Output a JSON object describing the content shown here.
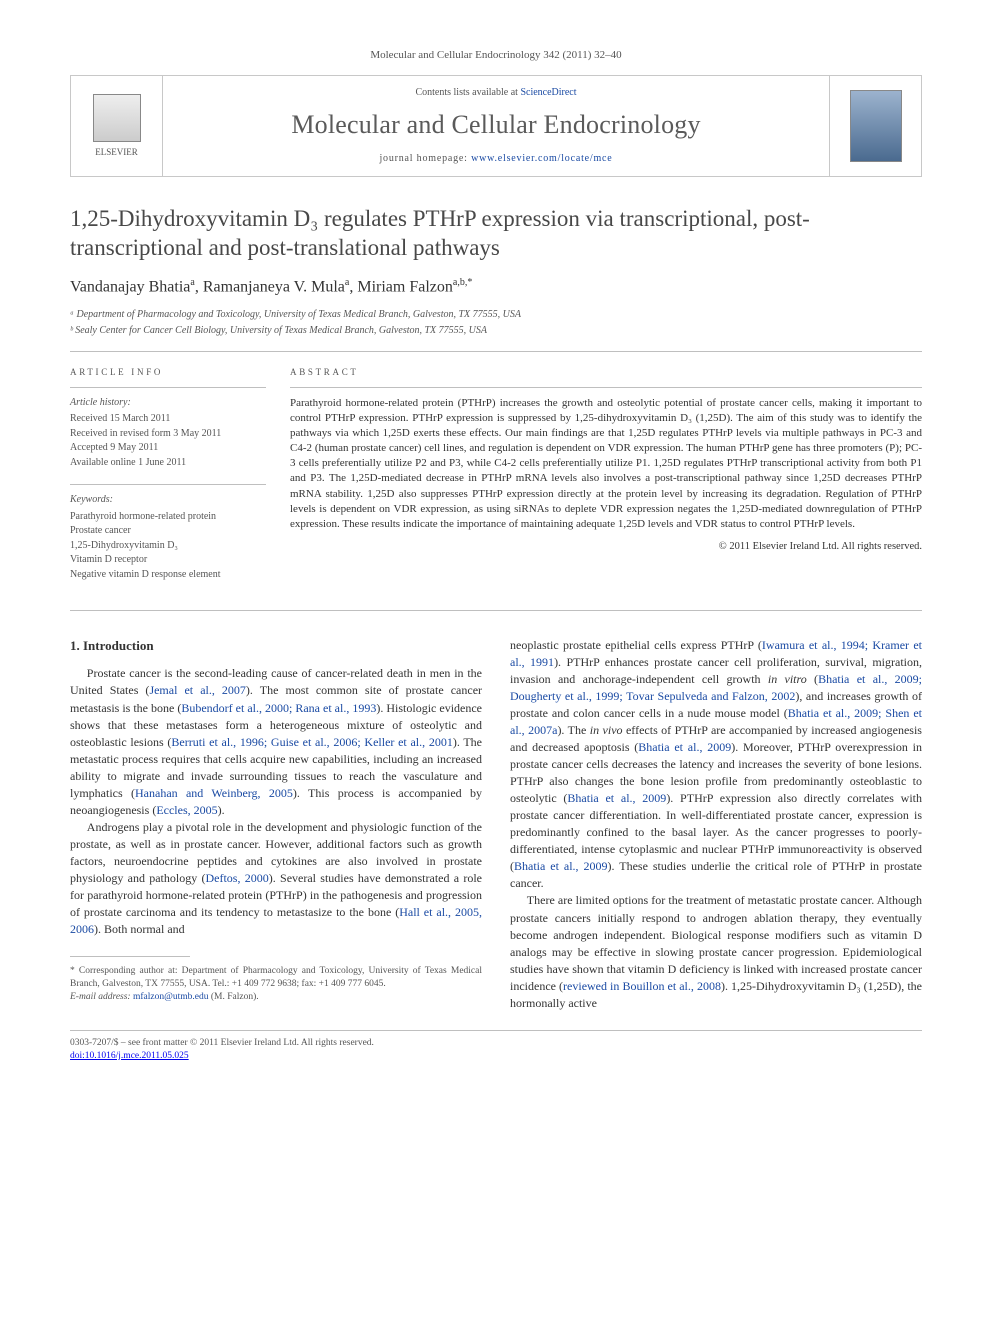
{
  "journal_ref": "Molecular and Cellular Endocrinology 342 (2011) 32–40",
  "publisher_name": "ELSEVIER",
  "contents_prefix": "Contents lists available at ",
  "contents_link": "ScienceDirect",
  "journal_name": "Molecular and Cellular Endocrinology",
  "homepage_prefix": "journal homepage: ",
  "homepage_url": "www.elsevier.com/locate/mce",
  "title": "1,25-Dihydroxyvitamin D₃ regulates PTHrP expression via transcriptional, post-transcriptional and post-translational pathways",
  "authors_html": "Vandanajay Bhatia<sup>a</sup>, Ramanjaneya V. Mula<sup>a</sup>, Miriam Falzon<sup>a,b,*</sup>",
  "affiliations": [
    "ᵃ Department of Pharmacology and Toxicology, University of Texas Medical Branch, Galveston, TX 77555, USA",
    "ᵇ Sealy Center for Cancer Cell Biology, University of Texas Medical Branch, Galveston, TX 77555, USA"
  ],
  "info_head": "ARTICLE INFO",
  "abs_head": "ABSTRACT",
  "history_label": "Article history:",
  "history": [
    "Received 15 March 2011",
    "Received in revised form 3 May 2011",
    "Accepted 9 May 2011",
    "Available online 1 June 2011"
  ],
  "keywords_label": "Keywords:",
  "keywords": [
    "Parathyroid hormone-related protein",
    "Prostate cancer",
    "1,25-Dihydroxyvitamin D₃",
    "Vitamin D receptor",
    "Negative vitamin D response element"
  ],
  "abstract": "Parathyroid hormone-related protein (PTHrP) increases the growth and osteolytic potential of prostate cancer cells, making it important to control PTHrP expression. PTHrP expression is suppressed by 1,25-dihydroxyvitamin D₃ (1,25D). The aim of this study was to identify the pathways via which 1,25D exerts these effects. Our main findings are that 1,25D regulates PTHrP levels via multiple pathways in PC-3 and C4-2 (human prostate cancer) cell lines, and regulation is dependent on VDR expression. The human PTHrP gene has three promoters (P); PC-3 cells preferentially utilize P2 and P3, while C4-2 cells preferentially utilize P1. 1,25D regulates PTHrP transcriptional activity from both P1 and P3. The 1,25D-mediated decrease in PTHrP mRNA levels also involves a post-transcriptional pathway since 1,25D decreases PTHrP mRNA stability. 1,25D also suppresses PTHrP expression directly at the protein level by increasing its degradation. Regulation of PTHrP levels is dependent on VDR expression, as using siRNAs to deplete VDR expression negates the 1,25D-mediated downregulation of PTHrP expression. These results indicate the importance of maintaining adequate 1,25D levels and VDR status to control PTHrP levels.",
  "copyright": "© 2011 Elsevier Ireland Ltd. All rights reserved.",
  "section_head": "1. Introduction",
  "col1": {
    "p1": "Prostate cancer is the second-leading cause of cancer-related death in men in the United States (Jemal et al., 2007). The most common site of prostate cancer metastasis is the bone (Bubendorf et al., 2000; Rana et al., 1993). Histologic evidence shows that these metastases form a heterogeneous mixture of osteolytic and osteoblastic lesions (Berruti et al., 1996; Guise et al., 2006; Keller et al., 2001). The metastatic process requires that cells acquire new capabilities, including an increased ability to migrate and invade surrounding tissues to reach the vasculature and lymphatics (Hanahan and Weinberg, 2005). This process is accompanied by neoangiogenesis (Eccles, 2005).",
    "p2": "Androgens play a pivotal role in the development and physiologic function of the prostate, as well as in prostate cancer. However, additional factors such as growth factors, neuroendocrine peptides and cytokines are also involved in prostate physiology and pathology (Deftos, 2000). Several studies have demonstrated a role for parathyroid hormone-related protein (PTHrP) in the pathogenesis and progression of prostate carcinoma and its tendency to metastasize to the bone (Hall et al., 2005, 2006). Both normal and"
  },
  "col2": {
    "p1": "neoplastic prostate epithelial cells express PTHrP (Iwamura et al., 1994; Kramer et al., 1991). PTHrP enhances prostate cancer cell proliferation, survival, migration, invasion and anchorage-independent cell growth in vitro (Bhatia et al., 2009; Dougherty et al., 1999; Tovar Sepulveda and Falzon, 2002), and increases growth of prostate and colon cancer cells in a nude mouse model (Bhatia et al., 2009; Shen et al., 2007a). The in vivo effects of PTHrP are accompanied by increased angiogenesis and decreased apoptosis (Bhatia et al., 2009). Moreover, PTHrP overexpression in prostate cancer cells decreases the latency and increases the severity of bone lesions. PTHrP also changes the bone lesion profile from predominantly osteoblastic to osteolytic (Bhatia et al., 2009). PTHrP expression also directly correlates with prostate cancer differentiation. In well-differentiated prostate cancer, expression is predominantly confined to the basal layer. As the cancer progresses to poorly-differentiated, intense cytoplasmic and nuclear PTHrP immunoreactivity is observed (Bhatia et al., 2009). These studies underlie the critical role of PTHrP in prostate cancer.",
    "p2": "There are limited options for the treatment of metastatic prostate cancer. Although prostate cancers initially respond to androgen ablation therapy, they eventually become androgen independent. Biological response modifiers such as vitamin D analogs may be effective in slowing prostate cancer progression. Epidemiological studies have shown that vitamin D deficiency is linked with increased prostate cancer incidence (reviewed in Bouillon et al., 2008). 1,25-Dihydroxyvitamin D₃ (1,25D), the hormonally active"
  },
  "corr": {
    "l1": "* Corresponding author at: Department of Pharmacology and Toxicology, University of Texas Medical Branch, Galveston, TX 77555, USA. Tel.: +1 409 772 9638; fax: +1 409 777 6045.",
    "l2_label": "E-mail address:",
    "l2_email": "mfalzon@utmb.edu",
    "l2_suffix": "(M. Falzon)."
  },
  "footer": {
    "left1": "0303-7207/$ – see front matter © 2011 Elsevier Ireland Ltd. All rights reserved.",
    "left2": "doi:10.1016/j.mce.2011.05.025"
  },
  "colors": {
    "link": "#1a4aa3",
    "rule": "#bfbfbf",
    "text": "#333333",
    "muted": "#555555"
  }
}
